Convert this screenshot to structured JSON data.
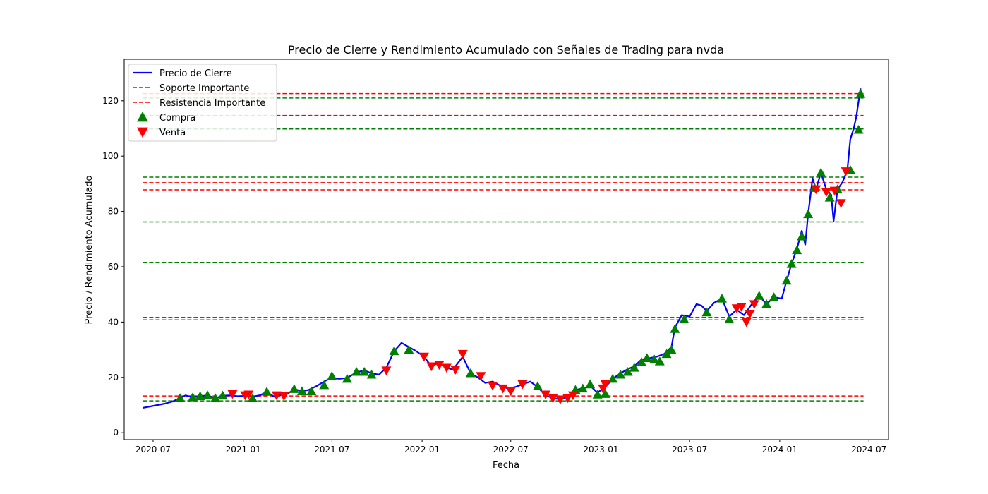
{
  "chart_data": {
    "type": "line",
    "title": "Precio de Cierre y Rendimiento Acumulado con Señales de Trading para nvda",
    "xlabel": "Fecha",
    "ylabel": "Precio / Rendimiento Acumulado",
    "xlim": [
      "2020-05-03",
      "2024-08-10"
    ],
    "ylim": [
      -2.5,
      135
    ],
    "x_ticks": [
      "2020-07",
      "2021-01",
      "2021-07",
      "2022-01",
      "2022-07",
      "2023-01",
      "2023-07",
      "2024-01",
      "2024-07"
    ],
    "y_ticks": [
      0,
      20,
      40,
      60,
      80,
      100,
      120
    ],
    "grid": false,
    "legend_position": "upper left",
    "legend": [
      {
        "label": "Precio de Cierre",
        "kind": "line",
        "color": "#0000ff"
      },
      {
        "label": "Soporte Importante",
        "kind": "dashed",
        "color": "#008000"
      },
      {
        "label": "Resistencia Importante",
        "kind": "dashed",
        "color": "#ff0000"
      },
      {
        "label": "Compra",
        "kind": "triangle-up",
        "color": "#008000"
      },
      {
        "label": "Venta",
        "kind": "triangle-down",
        "color": "#ff0000"
      }
    ],
    "horizontal_lines_x_range": [
      "2020-06-10",
      "2024-06-20"
    ],
    "support_levels": [
      11.5,
      40.8,
      61.6,
      76.2,
      92.4,
      109.8,
      121.0
    ],
    "resistance_levels": [
      13.3,
      41.7,
      87.8,
      90.4,
      114.7,
      122.6
    ],
    "series": [
      {
        "name": "Precio de Cierre",
        "color": "#0000ff",
        "points": [
          [
            "2020-06-10",
            9.0
          ],
          [
            "2020-06-25",
            9.5
          ],
          [
            "2020-07-10",
            10.0
          ],
          [
            "2020-07-25",
            10.5
          ],
          [
            "2020-08-10",
            11.3
          ],
          [
            "2020-08-25",
            12.5
          ],
          [
            "2020-09-05",
            13.5
          ],
          [
            "2020-09-20",
            12.8
          ],
          [
            "2020-10-05",
            13.2
          ],
          [
            "2020-10-20",
            13.5
          ],
          [
            "2020-11-05",
            12.5
          ],
          [
            "2020-11-20",
            13.4
          ],
          [
            "2020-12-05",
            13.5
          ],
          [
            "2020-12-20",
            13.2
          ],
          [
            "2021-01-05",
            13.3
          ],
          [
            "2021-01-20",
            13.0
          ],
          [
            "2021-02-05",
            13.6
          ],
          [
            "2021-02-18",
            14.8
          ],
          [
            "2021-03-05",
            13.0
          ],
          [
            "2021-03-20",
            13.7
          ],
          [
            "2021-04-05",
            14.5
          ],
          [
            "2021-04-15",
            15.8
          ],
          [
            "2021-05-01",
            15.0
          ],
          [
            "2021-05-15",
            15.5
          ],
          [
            "2021-06-01",
            17.0
          ],
          [
            "2021-06-15",
            18.5
          ],
          [
            "2021-07-01",
            20.0
          ],
          [
            "2021-07-15",
            19.5
          ],
          [
            "2021-08-01",
            19.8
          ],
          [
            "2021-08-20",
            21.8
          ],
          [
            "2021-09-05",
            22.5
          ],
          [
            "2021-09-20",
            21.5
          ],
          [
            "2021-10-05",
            21.0
          ],
          [
            "2021-10-20",
            23.5
          ],
          [
            "2021-11-05",
            29.5
          ],
          [
            "2021-11-20",
            32.5
          ],
          [
            "2021-12-05",
            31.0
          ],
          [
            "2021-12-20",
            29.5
          ],
          [
            "2022-01-05",
            27.5
          ],
          [
            "2022-01-20",
            24.0
          ],
          [
            "2022-02-05",
            25.5
          ],
          [
            "2022-02-20",
            23.5
          ],
          [
            "2022-03-05",
            22.8
          ],
          [
            "2022-03-25",
            27.5
          ],
          [
            "2022-04-10",
            21.5
          ],
          [
            "2022-04-25",
            20.0
          ],
          [
            "2022-05-10",
            18.0
          ],
          [
            "2022-05-25",
            18.5
          ],
          [
            "2022-06-10",
            17.0
          ],
          [
            "2022-06-25",
            16.0
          ],
          [
            "2022-07-10",
            16.5
          ],
          [
            "2022-07-25",
            17.5
          ],
          [
            "2022-08-10",
            18.5
          ],
          [
            "2022-08-25",
            16.5
          ],
          [
            "2022-09-10",
            13.5
          ],
          [
            "2022-09-25",
            12.5
          ],
          [
            "2022-10-10",
            12.0
          ],
          [
            "2022-10-25",
            13.0
          ],
          [
            "2022-11-10",
            15.5
          ],
          [
            "2022-11-25",
            16.0
          ],
          [
            "2022-12-10",
            17.0
          ],
          [
            "2022-12-25",
            14.5
          ],
          [
            "2023-01-10",
            16.5
          ],
          [
            "2023-01-25",
            19.5
          ],
          [
            "2023-02-10",
            21.5
          ],
          [
            "2023-02-25",
            23.0
          ],
          [
            "2023-03-10",
            24.0
          ],
          [
            "2023-03-25",
            26.5
          ],
          [
            "2023-04-10",
            27.0
          ],
          [
            "2023-04-25",
            27.5
          ],
          [
            "2023-05-10",
            28.5
          ],
          [
            "2023-05-25",
            31.0
          ],
          [
            "2023-06-01",
            38.0
          ],
          [
            "2023-06-15",
            42.5
          ],
          [
            "2023-07-01",
            42.0
          ],
          [
            "2023-07-15",
            46.5
          ],
          [
            "2023-07-25",
            46.0
          ],
          [
            "2023-08-05",
            44.0
          ],
          [
            "2023-08-20",
            47.0
          ],
          [
            "2023-09-05",
            48.5
          ],
          [
            "2023-09-20",
            42.0
          ],
          [
            "2023-10-05",
            44.5
          ],
          [
            "2023-10-20",
            42.5
          ],
          [
            "2023-11-05",
            46.5
          ],
          [
            "2023-11-20",
            49.5
          ],
          [
            "2023-12-05",
            46.5
          ],
          [
            "2023-12-20",
            49.0
          ],
          [
            "2024-01-05",
            48.5
          ],
          [
            "2024-01-15",
            55.0
          ],
          [
            "2024-01-25",
            61.0
          ],
          [
            "2024-02-05",
            66.5
          ],
          [
            "2024-02-15",
            73.0
          ],
          [
            "2024-02-22",
            68.0
          ],
          [
            "2024-02-28",
            79.0
          ],
          [
            "2024-03-08",
            92.0
          ],
          [
            "2024-03-15",
            88.0
          ],
          [
            "2024-03-25",
            94.0
          ],
          [
            "2024-04-05",
            88.0
          ],
          [
            "2024-04-15",
            86.0
          ],
          [
            "2024-04-20",
            76.5
          ],
          [
            "2024-04-28",
            88.0
          ],
          [
            "2024-05-08",
            90.5
          ],
          [
            "2024-05-18",
            95.0
          ],
          [
            "2024-05-24",
            106.0
          ],
          [
            "2024-05-31",
            110.0
          ],
          [
            "2024-06-05",
            114.0
          ],
          [
            "2024-06-10",
            120.0
          ],
          [
            "2024-06-14",
            124.5
          ]
        ]
      }
    ],
    "buy_signals": [
      [
        "2020-08-25",
        12.5
      ],
      [
        "2020-09-20",
        12.8
      ],
      [
        "2020-10-05",
        13.2
      ],
      [
        "2020-10-20",
        13.5
      ],
      [
        "2020-11-05",
        12.5
      ],
      [
        "2020-11-20",
        13.4
      ],
      [
        "2021-01-20",
        12.5
      ],
      [
        "2021-02-18",
        14.8
      ],
      [
        "2021-04-15",
        15.8
      ],
      [
        "2021-05-01",
        15.0
      ],
      [
        "2021-05-20",
        15.0
      ],
      [
        "2021-06-15",
        17.2
      ],
      [
        "2021-07-01",
        20.5
      ],
      [
        "2021-08-01",
        19.5
      ],
      [
        "2021-08-20",
        22.0
      ],
      [
        "2021-09-05",
        22.0
      ],
      [
        "2021-09-20",
        21.0
      ],
      [
        "2021-11-05",
        29.5
      ],
      [
        "2021-12-05",
        30.0
      ],
      [
        "2022-04-10",
        21.5
      ],
      [
        "2022-08-25",
        16.8
      ],
      [
        "2022-11-10",
        15.5
      ],
      [
        "2022-11-25",
        16.0
      ],
      [
        "2022-12-10",
        17.5
      ],
      [
        "2022-12-25",
        13.8
      ],
      [
        "2023-01-10",
        14.0
      ],
      [
        "2023-01-25",
        19.5
      ],
      [
        "2023-02-10",
        21.0
      ],
      [
        "2023-02-25",
        22.0
      ],
      [
        "2023-03-10",
        23.5
      ],
      [
        "2023-03-25",
        25.5
      ],
      [
        "2023-04-05",
        27.0
      ],
      [
        "2023-04-20",
        26.5
      ],
      [
        "2023-05-01",
        25.8
      ],
      [
        "2023-05-15",
        28.5
      ],
      [
        "2023-05-25",
        30.0
      ],
      [
        "2023-06-01",
        37.5
      ],
      [
        "2023-06-20",
        41.0
      ],
      [
        "2023-08-05",
        43.5
      ],
      [
        "2023-09-05",
        48.5
      ],
      [
        "2023-09-20",
        41.0
      ],
      [
        "2023-11-20",
        49.5
      ],
      [
        "2023-12-05",
        46.5
      ],
      [
        "2023-12-20",
        49.0
      ],
      [
        "2024-01-15",
        55.0
      ],
      [
        "2024-01-25",
        61.0
      ],
      [
        "2024-02-05",
        66.0
      ],
      [
        "2024-02-15",
        71.0
      ],
      [
        "2024-02-28",
        79.0
      ],
      [
        "2024-03-12",
        88.5
      ],
      [
        "2024-03-25",
        94.0
      ],
      [
        "2024-04-12",
        85.0
      ],
      [
        "2024-04-28",
        88.0
      ],
      [
        "2024-05-24",
        95.0
      ],
      [
        "2024-06-10",
        109.5
      ],
      [
        "2024-06-14",
        122.5
      ]
    ],
    "sell_signals": [
      [
        "2020-12-10",
        14.0
      ],
      [
        "2021-01-05",
        13.5
      ],
      [
        "2021-01-12",
        13.8
      ],
      [
        "2021-03-10",
        13.5
      ],
      [
        "2021-03-25",
        13.3
      ],
      [
        "2021-10-20",
        22.5
      ],
      [
        "2022-01-05",
        27.5
      ],
      [
        "2022-01-20",
        24.0
      ],
      [
        "2022-02-05",
        24.5
      ],
      [
        "2022-02-20",
        23.5
      ],
      [
        "2022-03-10",
        22.8
      ],
      [
        "2022-03-25",
        28.5
      ],
      [
        "2022-05-01",
        20.5
      ],
      [
        "2022-05-25",
        17.0
      ],
      [
        "2022-06-15",
        16.0
      ],
      [
        "2022-07-01",
        15.0
      ],
      [
        "2022-07-25",
        17.5
      ],
      [
        "2022-09-10",
        13.8
      ],
      [
        "2022-09-25",
        12.5
      ],
      [
        "2022-10-10",
        12.0
      ],
      [
        "2022-10-25",
        12.5
      ],
      [
        "2022-11-05",
        13.5
      ],
      [
        "2023-01-05",
        16.0
      ],
      [
        "2023-01-10",
        17.5
      ],
      [
        "2023-10-05",
        45.0
      ],
      [
        "2023-10-15",
        45.5
      ],
      [
        "2023-10-25",
        40.0
      ],
      [
        "2023-11-01",
        43.0
      ],
      [
        "2023-11-10",
        46.5
      ],
      [
        "2024-03-15",
        88.0
      ],
      [
        "2024-04-05",
        87.0
      ],
      [
        "2024-04-22",
        87.5
      ],
      [
        "2024-05-05",
        83.0
      ],
      [
        "2024-05-15",
        94.5
      ]
    ]
  }
}
